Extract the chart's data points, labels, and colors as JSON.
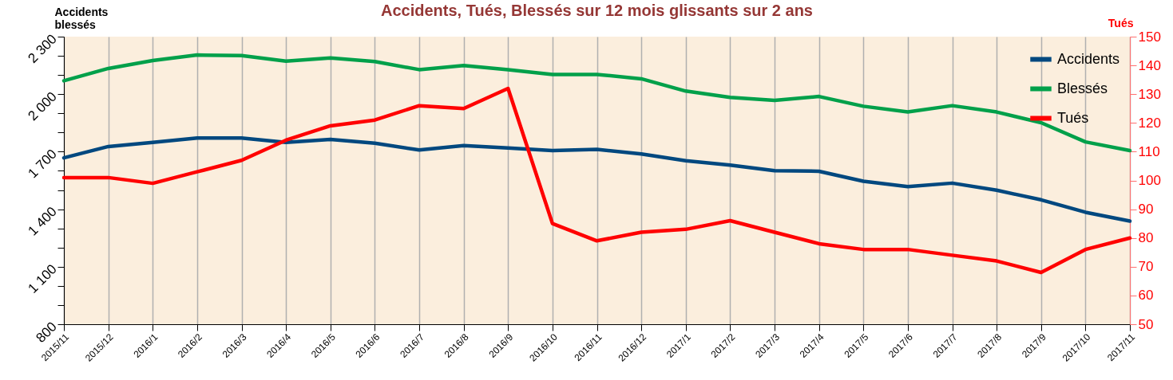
{
  "chart_data": {
    "type": "line",
    "title": "Accidents, Tués, Blessés sur 12 mois glissants sur 2 ans",
    "ylabel": "Accidents blessés",
    "y2label": "Tués",
    "categories": [
      "2015/11",
      "2015/12",
      "2016/1",
      "2016/2",
      "2016/3",
      "2016/4",
      "2016/5",
      "2016/6",
      "2016/7",
      "2016/8",
      "2016/9",
      "2016/10",
      "2016/11",
      "2016/12",
      "2017/1",
      "2017/2",
      "2017/3",
      "2017/4",
      "2017/5",
      "2017/6",
      "2017/7",
      "2017/8",
      "2017/9",
      "2017/10",
      "2017/11"
    ],
    "series": [
      {
        "name": "Accidents",
        "color": "#00487f",
        "values": [
          1668,
          1727,
          1748,
          1771,
          1771,
          1748,
          1764,
          1744,
          1709,
          1732,
          1719,
          1706,
          1712,
          1688,
          1653,
          1630,
          1601,
          1598,
          1546,
          1518,
          1536,
          1499,
          1449,
          1384,
          1338
        ]
      },
      {
        "name": "Blessés",
        "color": "#00a04a",
        "values": [
          2070,
          2134,
          2175,
          2204,
          2201,
          2172,
          2189,
          2170,
          2128,
          2149,
          2128,
          2103,
          2103,
          2080,
          2016,
          1983,
          1968,
          1988,
          1937,
          1907,
          1940,
          1907,
          1851,
          1751,
          1706
        ]
      },
      {
        "name": "Tués",
        "color": "#ff0000",
        "axis": "y2",
        "values": [
          101,
          101,
          99,
          103,
          107,
          114,
          119,
          121,
          126,
          125,
          132,
          85,
          79,
          82,
          83,
          86,
          82,
          78,
          76,
          76,
          74,
          72,
          68,
          76,
          80
        ]
      }
    ],
    "ylim": [
      800,
      2300
    ],
    "yticks": [
      800,
      {
        "value": 900,
        "label": null
      },
      {
        "value": 1000,
        "label": null
      },
      {
        "value": 1100,
        "label": "1 100"
      },
      {
        "value": 1200,
        "label": null
      },
      {
        "value": 1300,
        "label": null
      },
      {
        "value": 1400,
        "label": "1 400"
      },
      {
        "value": 1500,
        "label": null
      },
      {
        "value": 1600,
        "label": null
      },
      {
        "value": 1700,
        "label": "1 700"
      },
      {
        "value": 1800,
        "label": null
      },
      {
        "value": 1900,
        "label": null
      },
      {
        "value": 2000,
        "label": "2 000"
      },
      {
        "value": 2100,
        "label": null
      },
      {
        "value": 2200,
        "label": null
      },
      {
        "value": 2300,
        "label": "2 300"
      }
    ],
    "y2lim": [
      50,
      150
    ],
    "y2ticks": [
      50,
      60,
      70,
      80,
      90,
      100,
      110,
      120,
      130,
      140,
      150
    ],
    "grid": "x",
    "legend": "top right",
    "marker": "none",
    "line_style": "solid"
  }
}
